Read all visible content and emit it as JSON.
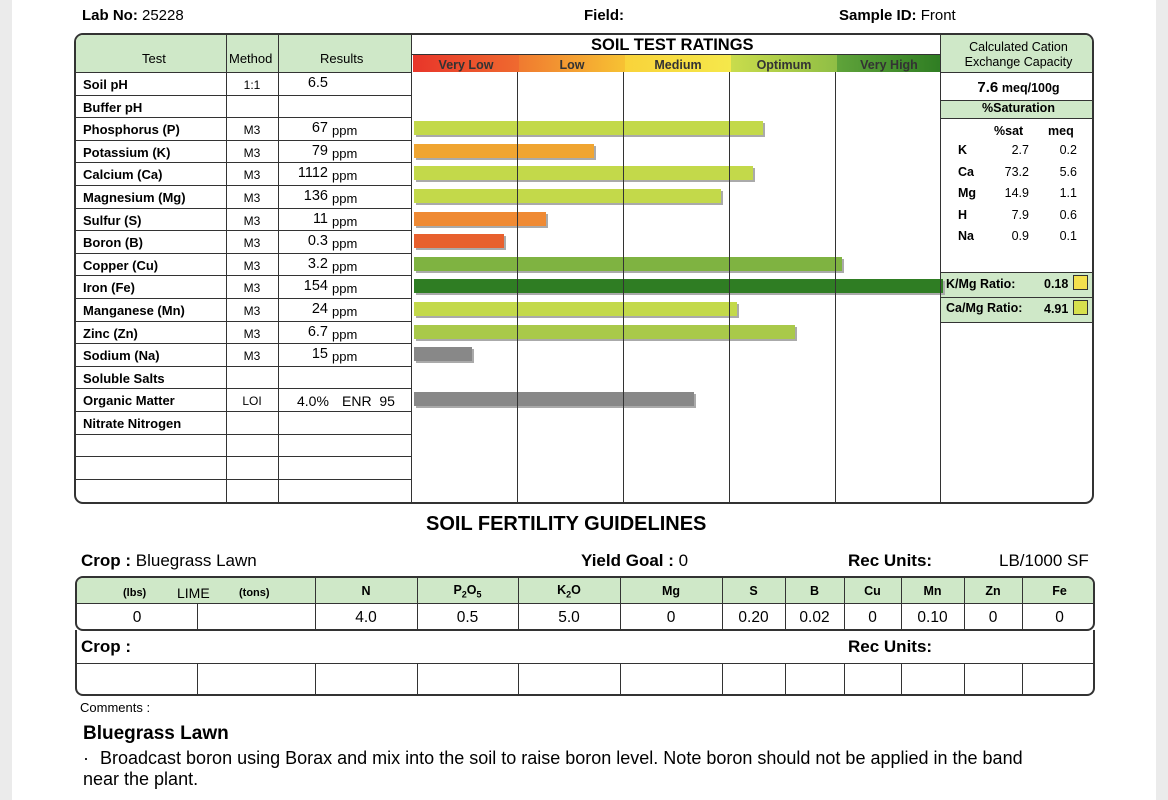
{
  "header": {
    "lab_label": "Lab No:",
    "lab_no": "25228",
    "field_label": "Field:",
    "sample_label": "Sample ID:",
    "sample_id": "Front"
  },
  "table": {
    "col_test": "Test",
    "col_method": "Method",
    "col_results": "Results",
    "ratings_title": "SOIL TEST RATINGS",
    "scale": [
      "Very Low",
      "Low",
      "Medium",
      "Optimum",
      "Very High"
    ],
    "rows": [
      {
        "name": "Soil pH",
        "method": "1:1",
        "value": "6.5",
        "unit": "",
        "bar": null,
        "color": ""
      },
      {
        "name": "Buffer pH",
        "method": "",
        "value": "",
        "unit": "",
        "bar": null,
        "color": ""
      },
      {
        "name": "Phosphorus (P)",
        "method": "M3",
        "value": "67",
        "unit": "ppm",
        "bar": 0.66,
        "color": "#c3d94a"
      },
      {
        "name": "Potassium (K)",
        "method": "M3",
        "value": "79",
        "unit": "ppm",
        "bar": 0.34,
        "color": "#f0a531"
      },
      {
        "name": "Calcium (Ca)",
        "method": "M3",
        "value": "1112",
        "unit": "ppm",
        "bar": 0.64,
        "color": "#c3d94a"
      },
      {
        "name": "Magnesium (Mg)",
        "method": "M3",
        "value": "136",
        "unit": "ppm",
        "bar": 0.58,
        "color": "#c3d94a"
      },
      {
        "name": "Sulfur (S)",
        "method": "M3",
        "value": "11",
        "unit": "ppm",
        "bar": 0.25,
        "color": "#ef8a34"
      },
      {
        "name": "Boron (B)",
        "method": "M3",
        "value": "0.3",
        "unit": "ppm",
        "bar": 0.17,
        "color": "#e8602e"
      },
      {
        "name": "Copper (Cu)",
        "method": "M3",
        "value": "3.2",
        "unit": "ppm",
        "bar": 0.81,
        "color": "#7fb341"
      },
      {
        "name": "Iron (Fe)",
        "method": "M3",
        "value": "154",
        "unit": "ppm",
        "bar": 1.0,
        "color": "#2f7d23"
      },
      {
        "name": "Manganese (Mn)",
        "method": "M3",
        "value": "24",
        "unit": "ppm",
        "bar": 0.61,
        "color": "#c3d94a"
      },
      {
        "name": "Zinc (Zn)",
        "method": "M3",
        "value": "6.7",
        "unit": "ppm",
        "bar": 0.72,
        "color": "#a9c94a"
      },
      {
        "name": "Sodium (Na)",
        "method": "M3",
        "value": "15",
        "unit": "ppm",
        "bar": 0.11,
        "color": "#888888"
      },
      {
        "name": "Soluble Salts",
        "method": "",
        "value": "",
        "unit": "",
        "bar": null,
        "color": ""
      },
      {
        "name": "Organic Matter",
        "method": "LOI",
        "value": "4.0%",
        "unit": "ENR  95",
        "bar": 0.53,
        "color": "#888888"
      },
      {
        "name": "Nitrate Nitrogen",
        "method": "",
        "value": "",
        "unit": "",
        "bar": null,
        "color": ""
      },
      {
        "name": "",
        "method": "",
        "value": "",
        "unit": "",
        "bar": null,
        "color": ""
      },
      {
        "name": "",
        "method": "",
        "value": "",
        "unit": "",
        "bar": null,
        "color": ""
      }
    ]
  },
  "cec": {
    "title1": "Calculated Cation",
    "title2": "Exchange Capacity",
    "value": "7.6",
    "unit": "meq/100g",
    "sat_label": "%Saturation",
    "col_sat": "%sat",
    "col_meq": "meq",
    "rows": [
      {
        "ion": "K",
        "sat": "2.7",
        "meq": "0.2"
      },
      {
        "ion": "Ca",
        "sat": "73.2",
        "meq": "5.6"
      },
      {
        "ion": "Mg",
        "sat": "14.9",
        "meq": "1.1"
      },
      {
        "ion": "H",
        "sat": "7.9",
        "meq": "0.6"
      },
      {
        "ion": "Na",
        "sat": "0.9",
        "meq": "0.1"
      }
    ],
    "kmg_label": "K/Mg Ratio:",
    "kmg": "0.18",
    "kmg_color": "#f4e04d",
    "camg_label": "Ca/Mg Ratio:",
    "camg": "4.91",
    "camg_color": "#d7e04d"
  },
  "guidelines": {
    "title": "SOIL FERTILITY GUIDELINES",
    "crop_label": "Crop :",
    "crop": "Bluegrass Lawn",
    "yield_label": "Yield Goal :",
    "yield": "0",
    "rec_label": "Rec Units:",
    "rec_units": "LB/1000 SF",
    "lime_lbs": "(lbs)",
    "lime": "LIME",
    "lime_tons": "(tons)",
    "headers": {
      "n": "N",
      "p": "P",
      "p_sub1": "2",
      "p_o": "O",
      "p_sub2": "5",
      "k": "K",
      "k_sub": "2",
      "k_o": "O",
      "mg": "Mg",
      "s": "S",
      "b": "B",
      "cu": "Cu",
      "mn": "Mn",
      "zn": "Zn",
      "fe": "Fe"
    },
    "values": {
      "lime": "0",
      "n": "4.0",
      "p": "0.5",
      "k": "5.0",
      "mg": "0",
      "s": "0.20",
      "b": "0.02",
      "cu": "0",
      "mn": "0.10",
      "zn": "0",
      "fe": "0"
    },
    "crop2_label": "Crop :",
    "rec2_label": "Rec Units:"
  },
  "comments": {
    "label": "Comments :",
    "heading": "Bluegrass Lawn",
    "bullet": "·",
    "text": "Broadcast boron using Borax and mix into the soil to raise boron level. Note boron should not be applied in the band",
    "text2": "near the plant."
  }
}
